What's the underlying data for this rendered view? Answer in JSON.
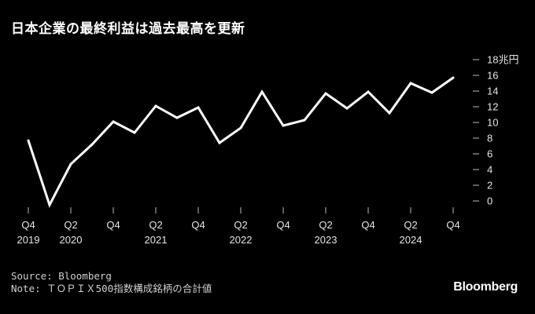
{
  "title": "日本企業の最終利益は過去最高を更新",
  "source": "Source: Bloomberg",
  "note": "Note: ＴＯＰＩＸ500指数構成銘柄の合計値",
  "logo": "Bloomberg",
  "chart_data": {
    "type": "line",
    "title": "日本企業の最終利益は過去最高を更新",
    "xlabel": "",
    "ylabel": "",
    "unit": "兆円",
    "ylim": [
      0,
      18
    ],
    "yticks": [
      0,
      2,
      4,
      6,
      8,
      10,
      12,
      14,
      16,
      18
    ],
    "ytick_labels": [
      "0",
      "2",
      "4",
      "6",
      "8",
      "10",
      "12",
      "14",
      "16",
      "18兆円"
    ],
    "x": [
      "Q4 2019",
      "Q1 2020",
      "Q2 2020",
      "Q3 2020",
      "Q4 2020",
      "Q1 2021",
      "Q2 2021",
      "Q3 2021",
      "Q4 2021",
      "Q1 2022",
      "Q2 2022",
      "Q3 2022",
      "Q4 2022",
      "Q1 2023",
      "Q2 2023",
      "Q3 2023",
      "Q4 2023",
      "Q1 2024",
      "Q2 2024",
      "Q3 2024",
      "Q4 2024"
    ],
    "xticks": [
      {
        "index": 0,
        "quarter": "Q4",
        "year": "2019"
      },
      {
        "index": 2,
        "quarter": "Q2",
        "year": "2020"
      },
      {
        "index": 4,
        "quarter": "Q4",
        "year": ""
      },
      {
        "index": 6,
        "quarter": "Q2",
        "year": "2021"
      },
      {
        "index": 8,
        "quarter": "Q4",
        "year": ""
      },
      {
        "index": 10,
        "quarter": "Q2",
        "year": "2022"
      },
      {
        "index": 12,
        "quarter": "Q4",
        "year": ""
      },
      {
        "index": 14,
        "quarter": "Q2",
        "year": "2023"
      },
      {
        "index": 16,
        "quarter": "Q4",
        "year": ""
      },
      {
        "index": 18,
        "quarter": "Q2",
        "year": "2024"
      },
      {
        "index": 20,
        "quarter": "Q4",
        "year": ""
      }
    ],
    "series": [
      {
        "values": [
          7.7,
          -0.5,
          4.7,
          7.2,
          10.1,
          8.7,
          12.1,
          10.6,
          11.9,
          7.4,
          9.3,
          13.9,
          9.6,
          10.3,
          13.7,
          11.8,
          13.9,
          11.2,
          15.0,
          13.8,
          15.7
        ]
      }
    ],
    "grid": false,
    "line_color": "#ffffff",
    "background": "#000000"
  }
}
